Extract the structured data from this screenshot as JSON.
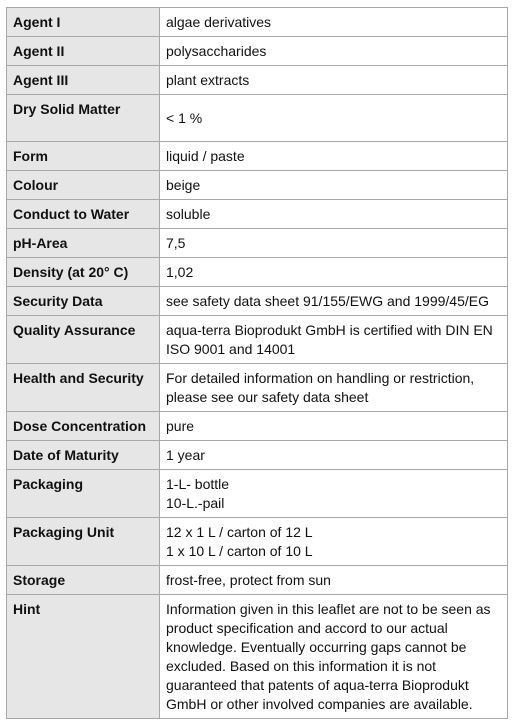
{
  "table": {
    "rows": [
      {
        "label": "Agent I",
        "value": [
          "algae derivatives"
        ]
      },
      {
        "label": "Agent II",
        "value": [
          "polysaccharides"
        ]
      },
      {
        "label": "Agent III",
        "value": [
          "plant extracts"
        ]
      },
      {
        "label": "Dry Solid Matter",
        "value": [
          "< 1 %"
        ]
      },
      {
        "label": "Form",
        "value": [
          "liquid / paste"
        ]
      },
      {
        "label": "Colour",
        "value": [
          "beige"
        ]
      },
      {
        "label": "Conduct to Water",
        "value": [
          "soluble"
        ]
      },
      {
        "label": "pH-Area",
        "value": [
          "7,5"
        ]
      },
      {
        "label": "Density (at 20° C)",
        "value": [
          "1,02"
        ]
      },
      {
        "label": "Security Data",
        "value": [
          "see safety data sheet 91/155/EWG and 1999/45/EG"
        ]
      },
      {
        "label": "Quality Assurance",
        "value": [
          "aqua-terra Bioprodukt GmbH is certified with DIN EN",
          "ISO 9001 and 14001"
        ]
      },
      {
        "label": "Health and Security",
        "value": [
          "For detailed information on handling or restriction,",
          "please see our safety data sheet"
        ]
      },
      {
        "label": "Dose Concentration",
        "value": [
          "pure"
        ]
      },
      {
        "label": "Date of Maturity",
        "value": [
          "1 year"
        ]
      },
      {
        "label": "Packaging",
        "value": [
          "1-L- bottle",
          "10-L.-pail"
        ]
      },
      {
        "label": "Packaging Unit",
        "value": [
          "12 x 1 L / carton of 12 L",
          "1 x 10 L / carton of 10 L"
        ]
      },
      {
        "label": "Storage",
        "value": [
          "frost-free, protect from sun"
        ]
      },
      {
        "label": "Hint",
        "value": [
          "Information given in this leaflet are not to be seen as",
          "product specification and accord to our actual",
          "knowledge. Eventually occurring gaps cannot be",
          "excluded. Based on this information it is not",
          "guaranteed that patents of aqua-terra Bioprodukt",
          "GmbH or other involved companies are available."
        ]
      }
    ]
  }
}
